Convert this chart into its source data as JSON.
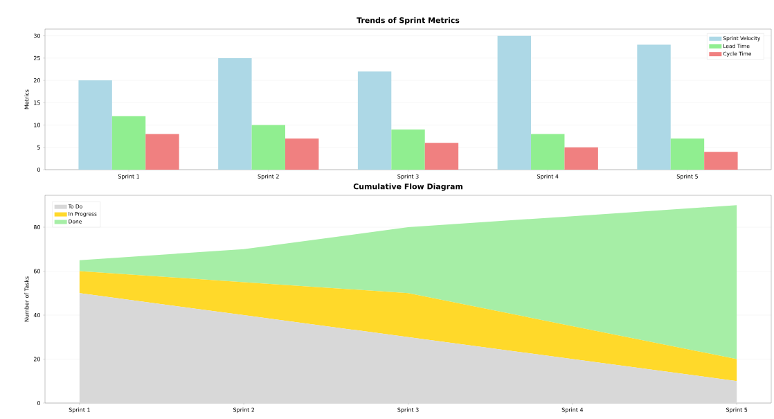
{
  "chart_data": [
    {
      "type": "bar",
      "title": "Trends of Sprint Metrics",
      "ylabel": "Metrics",
      "categories": [
        "Sprint 1",
        "Sprint 2",
        "Sprint 3",
        "Sprint 4",
        "Sprint 5"
      ],
      "series": [
        {
          "name": "Sprint Velocity",
          "color": "#add8e6",
          "values": [
            20,
            25,
            22,
            30,
            28
          ]
        },
        {
          "name": "Lead Time",
          "color": "#90ee90",
          "values": [
            12,
            10,
            9,
            8,
            7
          ]
        },
        {
          "name": "Cycle Time",
          "color": "#f08080",
          "values": [
            8,
            7,
            6,
            5,
            4
          ]
        }
      ],
      "ylim": [
        0,
        31.5
      ],
      "yticks": [
        0,
        5,
        10,
        15,
        20,
        25,
        30
      ],
      "grid": "y",
      "legend": "top right"
    },
    {
      "type": "area",
      "stacked": true,
      "title": "Cumulative Flow Diagram",
      "ylabel": "Number of Tasks",
      "categories": [
        "Sprint 1",
        "Sprint 2",
        "Sprint 3",
        "Sprint 4",
        "Sprint 5"
      ],
      "series": [
        {
          "name": "To Do",
          "color": "#d8d8d8",
          "values": [
            50,
            40,
            30,
            20,
            10
          ]
        },
        {
          "name": "In Progress",
          "color": "#ffd92a",
          "values": [
            10,
            15,
            20,
            15,
            10
          ]
        },
        {
          "name": "Done",
          "color": "#a6eea6",
          "values": [
            5,
            15,
            30,
            50,
            70
          ]
        }
      ],
      "ylim": [
        0,
        94.5
      ],
      "yticks": [
        0,
        20,
        40,
        60,
        80
      ],
      "grid": "y",
      "legend": "top left"
    }
  ]
}
